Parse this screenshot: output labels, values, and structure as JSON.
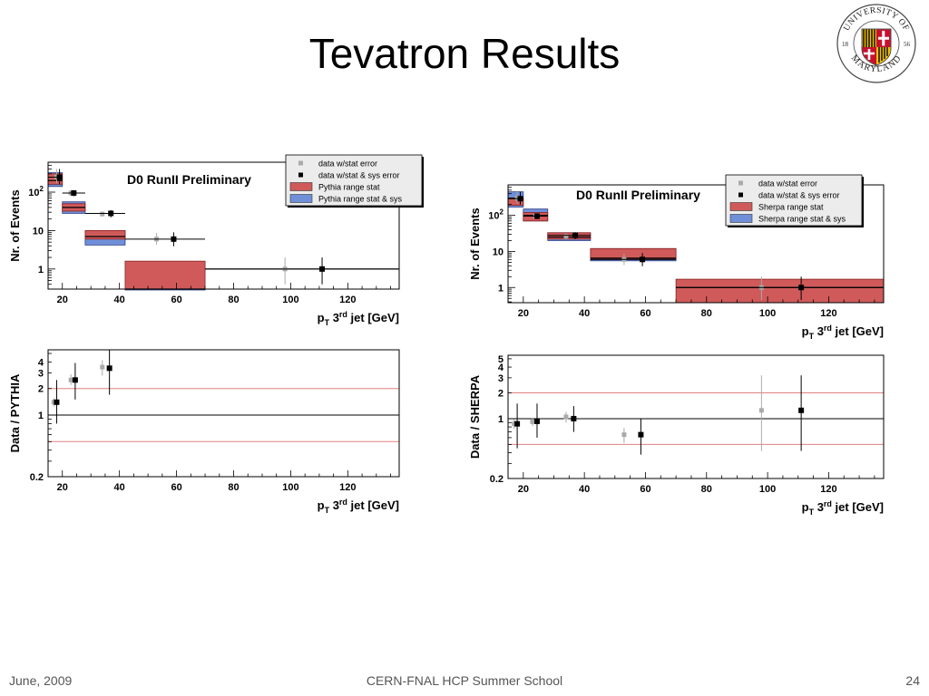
{
  "slide": {
    "title": "Tevatron Results",
    "footer_date": "June, 2009",
    "footer_center": "CERN-FNAL HCP Summer School",
    "page_number": "24"
  },
  "logo": {
    "top_text": "UNIVERSITY OF",
    "bottom_text": "MARYLAND",
    "year_left": "18",
    "year_right": "56",
    "colors": {
      "red": "#c8102e",
      "gold": "#f3c000",
      "black": "#000000",
      "white": "#ffffff"
    }
  },
  "chart_data": [
    {
      "id": "pythia-main",
      "type": "histogram",
      "title": "D0 RunII Preliminary",
      "xlabel": "p_T 3rd jet [GeV]",
      "ylabel": "Nr. of Events",
      "xlim": [
        15,
        138
      ],
      "ylim": [
        0.3,
        600
      ],
      "log_y": true,
      "xticks": [
        20,
        40,
        60,
        80,
        100,
        120
      ],
      "yticks": [
        {
          "v": 1,
          "label": "1"
        },
        {
          "v": 10,
          "label": "10"
        },
        {
          "v": 100,
          "label": "10^2"
        }
      ],
      "bins": [
        [
          15,
          20
        ],
        [
          20,
          28
        ],
        [
          28,
          42
        ],
        [
          42,
          70
        ],
        [
          70,
          138
        ]
      ],
      "stat_band": [
        [
          160,
          300
        ],
        [
          32,
          50
        ],
        [
          6,
          10
        ],
        [
          null,
          1.6
        ],
        null
      ],
      "sys_band": [
        [
          140,
          320
        ],
        [
          28,
          56
        ],
        [
          4.2,
          10
        ],
        [
          0.3,
          0.3
        ],
        null
      ],
      "central": [
        200,
        40,
        7,
        0.3,
        1
      ],
      "data_stat": [
        {
          "x": 18,
          "y": 250,
          "ylo": 170,
          "yhi": 400
        },
        {
          "x": 23,
          "y": 95,
          "ylo": 80,
          "yhi": 110
        },
        {
          "x": 34,
          "y": 27,
          "ylo": 23,
          "yhi": 31
        },
        {
          "x": 53,
          "y": 6,
          "ylo": 4.3,
          "yhi": 8.6
        },
        {
          "x": 98,
          "y": 1,
          "ylo": 0.4,
          "yhi": 2
        }
      ],
      "data_sys": [
        {
          "x": 19,
          "y": 245,
          "xlo": 15,
          "xhi": 20,
          "ylo": 160,
          "yhi": 400
        },
        {
          "x": 24,
          "y": 95,
          "xlo": 20,
          "xhi": 28,
          "ylo": 78,
          "yhi": 112
        },
        {
          "x": 37,
          "y": 28,
          "xlo": 28,
          "xhi": 42,
          "ylo": 22,
          "yhi": 34
        },
        {
          "x": 59,
          "y": 6,
          "xlo": 42,
          "xhi": 70,
          "ylo": 3.9,
          "yhi": 9
        },
        {
          "x": 111,
          "y": 1,
          "xlo": 70,
          "xhi": 138,
          "ylo": 0.4,
          "yhi": 2
        }
      ],
      "legend": {
        "placement": "top-right",
        "entries": [
          {
            "label": "data w/stat error",
            "kind": "marker",
            "color": "#aaaaaa"
          },
          {
            "label": "data w/stat & sys error",
            "kind": "marker",
            "color": "#000000"
          },
          {
            "label": "Pythia range stat",
            "kind": "box",
            "color": "#d05a5a"
          },
          {
            "label": "Pythia range stat & sys",
            "kind": "box",
            "color": "#6f8fd8"
          }
        ]
      }
    },
    {
      "id": "sherpa-main",
      "type": "histogram",
      "title": "D0 RunII Preliminary",
      "xlabel": "p_T 3rd jet [GeV]",
      "ylabel": "Nr. of Events",
      "xlim": [
        15,
        138
      ],
      "ylim": [
        0.38,
        700
      ],
      "log_y": true,
      "xticks": [
        20,
        40,
        60,
        80,
        100,
        120
      ],
      "yticks": [
        {
          "v": 1,
          "label": "1"
        },
        {
          "v": 10,
          "label": "10"
        },
        {
          "v": 100,
          "label": "10^2"
        }
      ],
      "bins": [
        [
          15,
          20
        ],
        [
          20,
          28
        ],
        [
          28,
          42
        ],
        [
          42,
          70
        ],
        [
          70,
          138
        ]
      ],
      "stat_band": [
        [
          190,
          300
        ],
        [
          70,
          120
        ],
        [
          22,
          33
        ],
        [
          6,
          12
        ],
        [
          0.38,
          1.7
        ]
      ],
      "sys_band": [
        [
          170,
          450
        ],
        [
          70,
          150
        ],
        [
          20,
          33
        ],
        [
          5.5,
          12
        ],
        null
      ],
      "central": [
        300,
        100,
        25,
        6.5,
        1
      ],
      "data_stat": [
        {
          "x": 18,
          "y": 300,
          "ylo": 210,
          "yhi": 450
        },
        {
          "x": 24,
          "y": 95,
          "ylo": 82,
          "yhi": 110
        },
        {
          "x": 34,
          "y": 26,
          "ylo": 22,
          "yhi": 31
        },
        {
          "x": 53,
          "y": 6,
          "ylo": 4.2,
          "yhi": 8.6
        },
        {
          "x": 98,
          "y": 1,
          "ylo": 0.45,
          "yhi": 2
        }
      ],
      "data_sys": [
        {
          "x": 19,
          "y": 290,
          "xlo": 15,
          "xhi": 20,
          "ylo": 200,
          "yhi": 450
        },
        {
          "x": 24.5,
          "y": 95,
          "xlo": 20,
          "xhi": 28,
          "ylo": 78,
          "yhi": 115
        },
        {
          "x": 37,
          "y": 28,
          "xlo": 28,
          "xhi": 42,
          "ylo": 22,
          "yhi": 34
        },
        {
          "x": 59,
          "y": 6,
          "xlo": 42,
          "xhi": 70,
          "ylo": 3.9,
          "yhi": 9
        },
        {
          "x": 111,
          "y": 1,
          "xlo": 70,
          "xhi": 138,
          "ylo": 0.45,
          "yhi": 2
        }
      ],
      "legend": {
        "placement": "top-right",
        "entries": [
          {
            "label": "data w/stat error",
            "kind": "marker",
            "color": "#aaaaaa"
          },
          {
            "label": "data w/stat & sys error",
            "kind": "marker",
            "color": "#000000"
          },
          {
            "label": "Sherpa range stat",
            "kind": "box",
            "color": "#d05a5a"
          },
          {
            "label": "Sherpa range stat & sys",
            "kind": "box",
            "color": "#6f8fd8"
          }
        ]
      }
    },
    {
      "id": "pythia-ratio",
      "type": "scatter",
      "title": "",
      "xlabel": "p_T 3rd jet [GeV]",
      "ylabel": "Data / PYTHIA",
      "xlim": [
        15,
        138
      ],
      "ylim": [
        0.2,
        5.5
      ],
      "log_y": true,
      "xticks": [
        20,
        40,
        60,
        80,
        100,
        120
      ],
      "yticks": [
        {
          "v": 0.2,
          "label": "0.2"
        },
        {
          "v": 1,
          "label": "1"
        },
        {
          "v": 2,
          "label": "2"
        },
        {
          "v": 3,
          "label": "3"
        },
        {
          "v": 4,
          "label": "4"
        }
      ],
      "ref_lines": [
        {
          "y": 1,
          "color": "#000000"
        },
        {
          "y": 2,
          "color": "#e08080"
        },
        {
          "y": 0.5,
          "color": "#e08080"
        }
      ],
      "data_stat": [
        {
          "x": 17,
          "y": 1.4,
          "ylo": 1.25,
          "yhi": 1.55
        },
        {
          "x": 23,
          "y": 2.5,
          "ylo": 2.2,
          "yhi": 2.9
        },
        {
          "x": 34,
          "y": 3.5,
          "ylo": 2.8,
          "yhi": 4.2
        }
      ],
      "data_sys": [
        {
          "x": 18,
          "y": 1.4,
          "ylo": 0.8,
          "yhi": 2.5
        },
        {
          "x": 24.5,
          "y": 2.5,
          "ylo": 1.5,
          "yhi": 3.9
        },
        {
          "x": 36.5,
          "y": 3.4,
          "ylo": 1.7,
          "yhi": 5.5
        }
      ]
    },
    {
      "id": "sherpa-ratio",
      "type": "scatter",
      "title": "",
      "xlabel": "p_T 3rd jet [GeV]",
      "ylabel": "Data / SHERPA",
      "xlim": [
        15,
        138
      ],
      "ylim": [
        0.2,
        5.5
      ],
      "log_y": true,
      "xticks": [
        20,
        40,
        60,
        80,
        100,
        120
      ],
      "yticks": [
        {
          "v": 0.2,
          "label": "0.2"
        },
        {
          "v": 1,
          "label": "1"
        },
        {
          "v": 2,
          "label": "2"
        },
        {
          "v": 3,
          "label": "3"
        },
        {
          "v": 4,
          "label": "4"
        },
        {
          "v": 5,
          "label": "5"
        }
      ],
      "ref_lines": [
        {
          "y": 1,
          "color": "#000000"
        },
        {
          "y": 2,
          "color": "#e08080"
        },
        {
          "y": 0.5,
          "color": "#e08080"
        }
      ],
      "data_stat": [
        {
          "x": 17,
          "y": 0.87,
          "ylo": 0.76,
          "yhi": 0.98
        },
        {
          "x": 23,
          "y": 0.92,
          "ylo": 0.82,
          "yhi": 1.02
        },
        {
          "x": 34,
          "y": 1.05,
          "ylo": 0.9,
          "yhi": 1.2
        },
        {
          "x": 53,
          "y": 0.65,
          "ylo": 0.52,
          "yhi": 0.78
        },
        {
          "x": 98,
          "y": 1.25,
          "ylo": 0.42,
          "yhi": 3.2
        }
      ],
      "data_sys": [
        {
          "x": 18,
          "y": 0.87,
          "ylo": 0.45,
          "yhi": 1.5
        },
        {
          "x": 24.5,
          "y": 0.93,
          "ylo": 0.6,
          "yhi": 1.5
        },
        {
          "x": 36.5,
          "y": 1.0,
          "ylo": 0.7,
          "yhi": 1.4
        },
        {
          "x": 58.5,
          "y": 0.65,
          "ylo": 0.38,
          "yhi": 1.0
        },
        {
          "x": 111,
          "y": 1.25,
          "ylo": 0.42,
          "yhi": 3.2
        }
      ]
    }
  ],
  "colors": {
    "stat_band": "#d05a5a",
    "stat_band_edge": "#8a2020",
    "sys_band": "#6f8fd8",
    "sys_band_edge": "#2b3f8a",
    "data_stat": "#aaaaaa",
    "data_sys": "#000000",
    "legend_bg": "#ececec"
  }
}
